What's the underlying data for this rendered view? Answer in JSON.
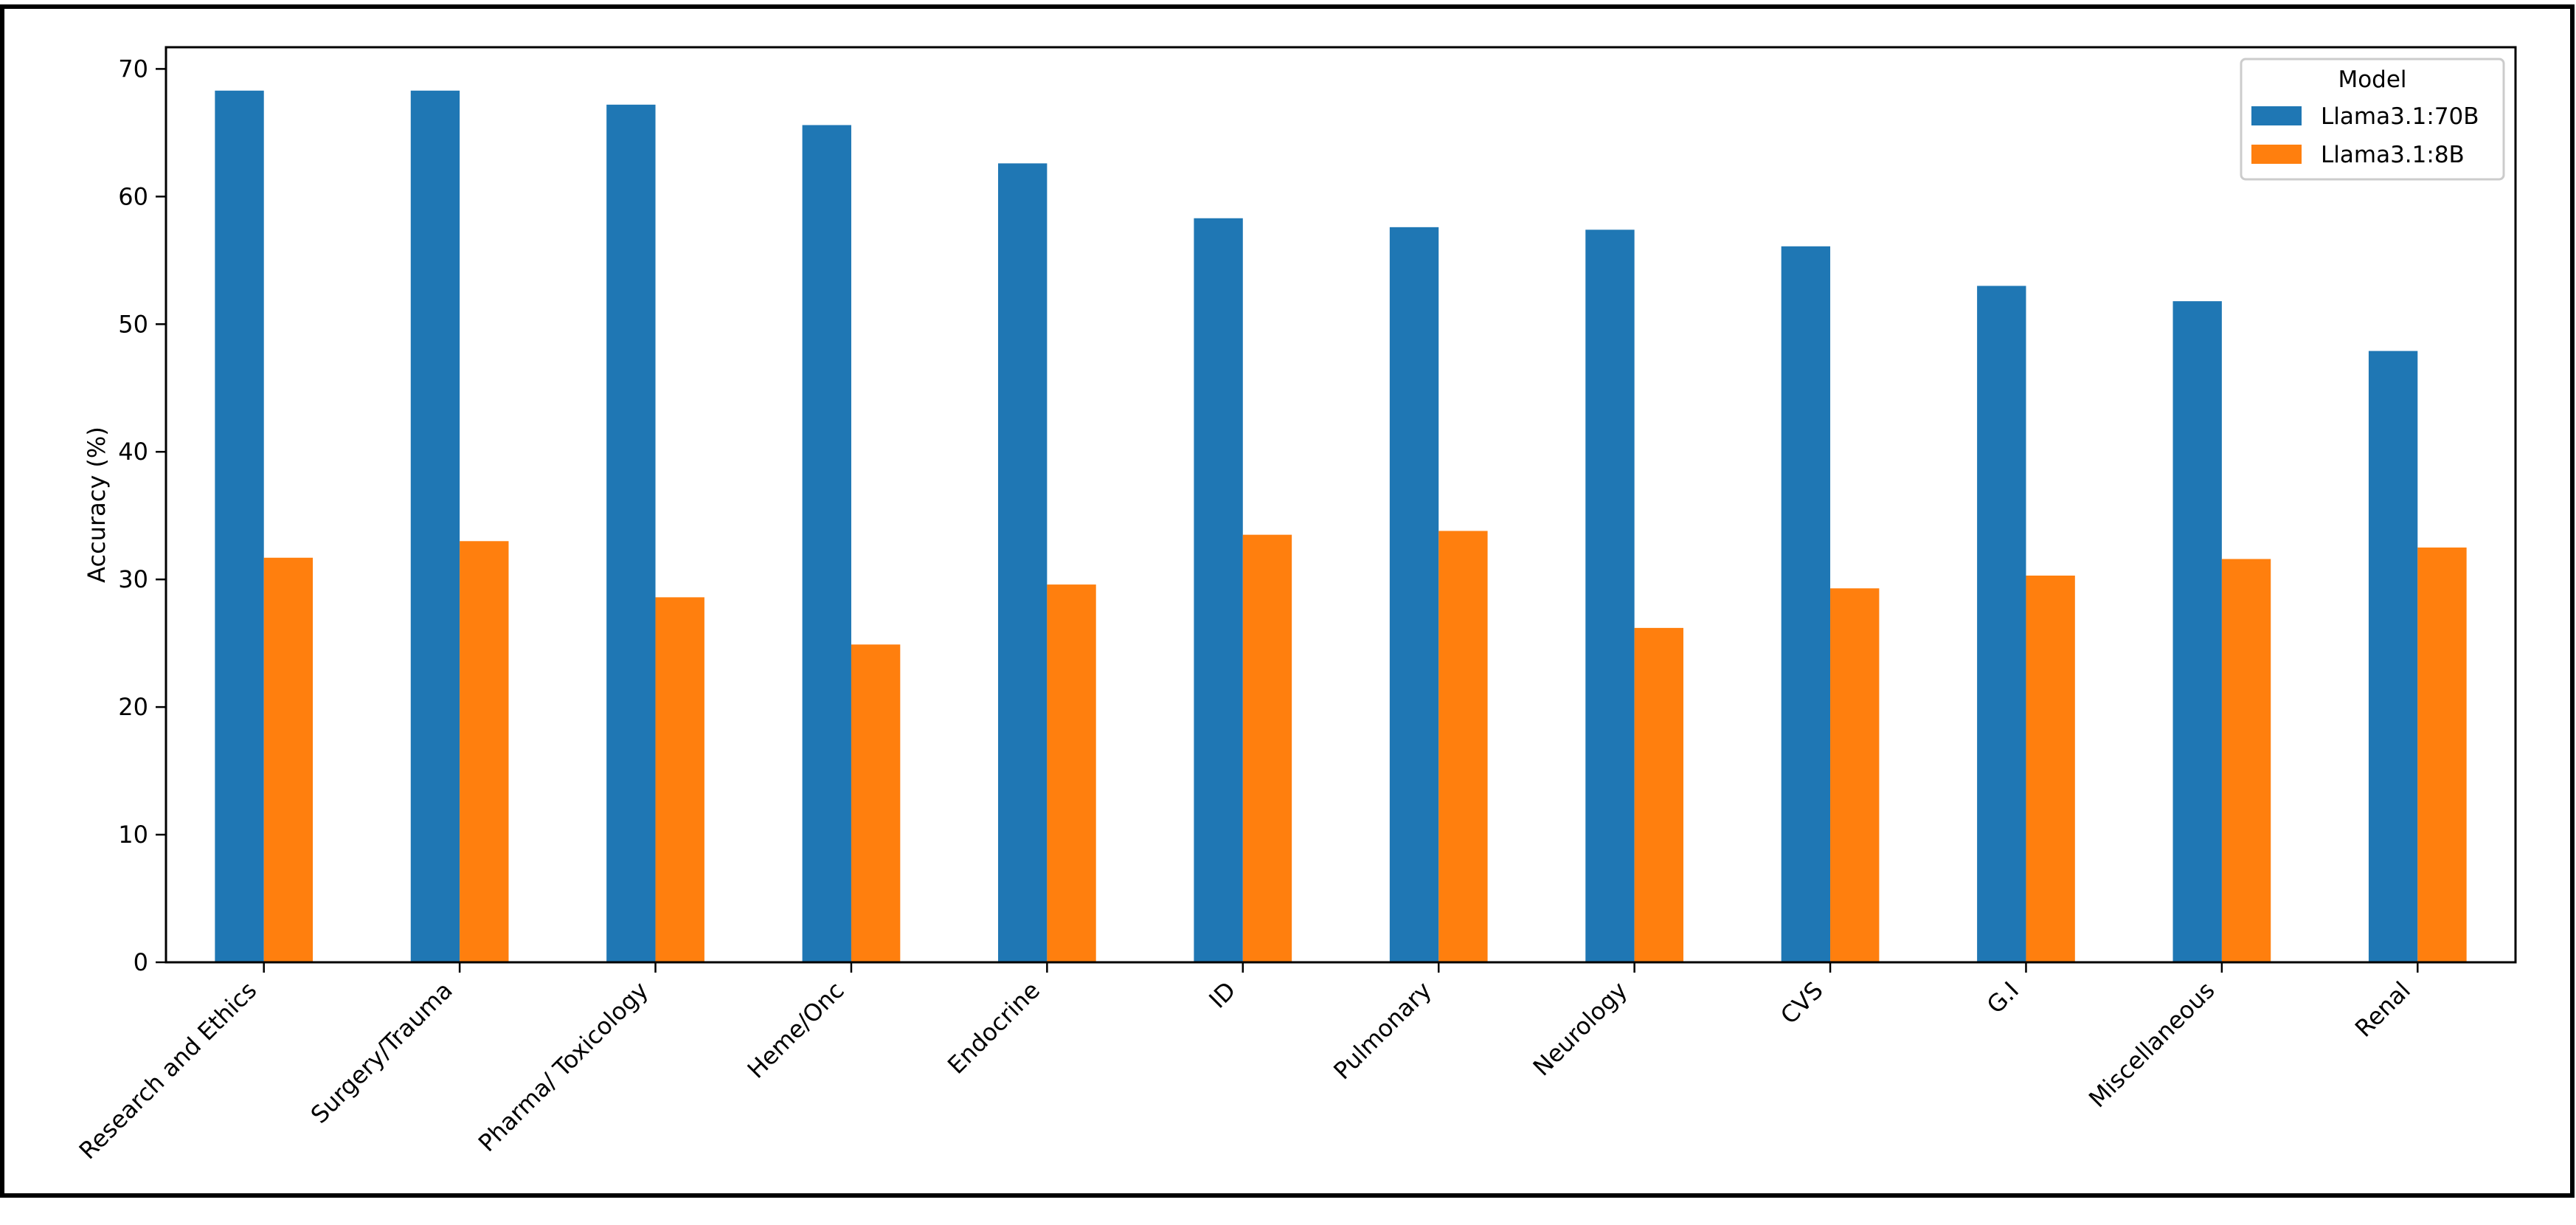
{
  "chart_data": {
    "type": "bar",
    "title": "",
    "xlabel": "",
    "ylabel": "Accuracy (%)",
    "ylim": [
      0,
      71.7
    ],
    "yticks": [
      0,
      10,
      20,
      30,
      40,
      50,
      60,
      70
    ],
    "grid": false,
    "legend": {
      "title": "Model",
      "placement": "top-right"
    },
    "categories": [
      "Research and Ethics",
      "Surgery/Trauma",
      "Pharma/ Toxicology",
      "Heme/Onc",
      "Endocrine",
      "ID",
      "Pulmonary",
      "Neurology",
      "CVS",
      "G.I",
      "Miscellaneous",
      "Renal"
    ],
    "series": [
      {
        "name": "Llama3.1:70B",
        "color": "#1f77b4",
        "values": [
          68.3,
          68.3,
          67.2,
          65.6,
          62.6,
          58.3,
          57.6,
          57.4,
          56.1,
          53.0,
          51.8,
          47.9
        ]
      },
      {
        "name": "Llama3.1:8B",
        "color": "#ff7f0e",
        "values": [
          31.7,
          33.0,
          28.6,
          24.9,
          29.6,
          33.5,
          33.8,
          26.2,
          29.3,
          30.3,
          31.6,
          32.5
        ]
      }
    ]
  }
}
